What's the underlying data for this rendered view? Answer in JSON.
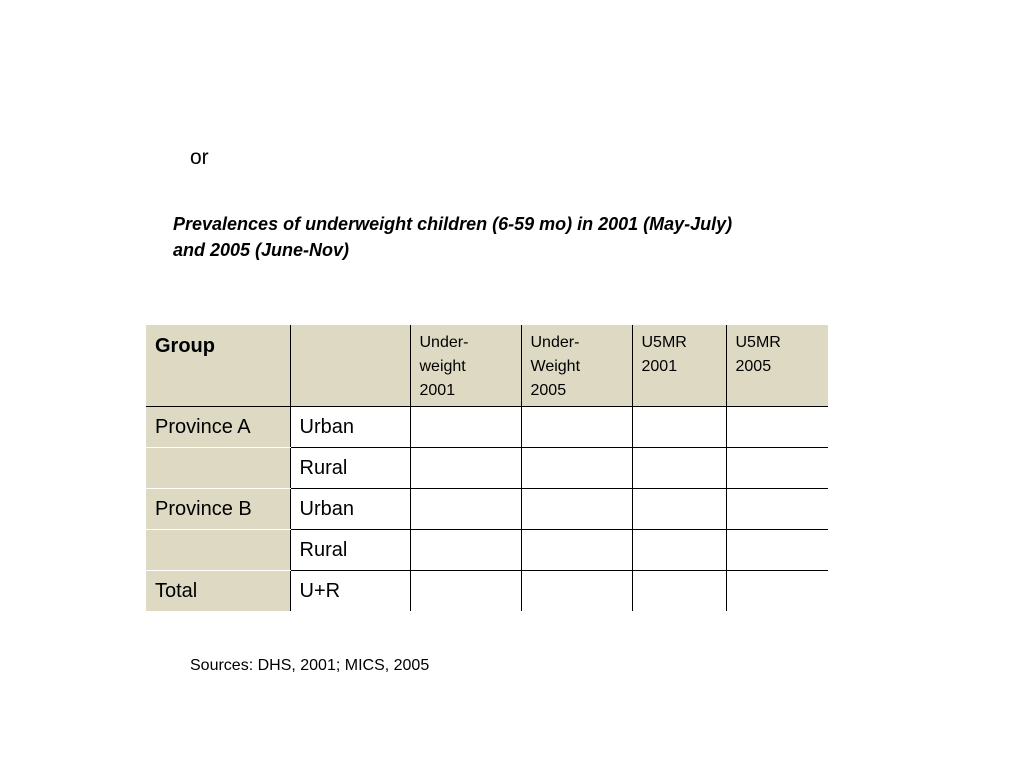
{
  "intro": {
    "or_text": "or"
  },
  "caption": {
    "line1": "Prevalences of underweight children (6-59 mo) in 2001 (May-July)",
    "line2": "and 2005 (June-Nov)"
  },
  "table": {
    "header": {
      "group": "Group",
      "subgroup": "",
      "col1": [
        "Under-",
        "weight",
        "2001"
      ],
      "col2": [
        "Under-",
        "Weight",
        "2005"
      ],
      "col3": [
        "U5MR",
        "2001"
      ],
      "col4": [
        "U5MR",
        "2005"
      ]
    },
    "rows": [
      {
        "group": "Province A",
        "subgroup": "Urban"
      },
      {
        "group": "",
        "subgroup": "Rural"
      },
      {
        "group": "Province B",
        "subgroup": "Urban"
      },
      {
        "group": "",
        "subgroup": "Rural"
      },
      {
        "group": "Total",
        "subgroup": "U+R"
      }
    ]
  },
  "footer": {
    "sources": "Sources: DHS, 2001; MICS, 2005"
  },
  "colors": {
    "header_fill": "#ddd9c3",
    "grid_line": "#000000"
  }
}
